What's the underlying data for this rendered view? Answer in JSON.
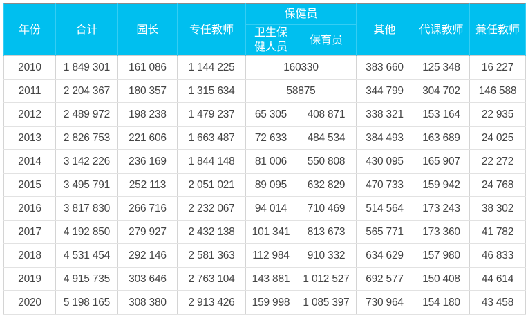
{
  "table": {
    "headers": {
      "year": "年份",
      "total": "合计",
      "principal": "园长",
      "fulltime_teacher": "专任教师",
      "health_staff": "保健员",
      "health_staff_sub": [
        "卫生保健人员",
        "保育员"
      ],
      "other": "其他",
      "substitute_teacher": "代课教师",
      "parttime_teacher": "兼任教师"
    },
    "header_color": "#00bfef",
    "rows": [
      [
        "2010",
        "1 849 301",
        "161 086",
        "1 144 225",
        "160330",
        null,
        "383 660",
        "125 348",
        "16 227"
      ],
      [
        "2011",
        "2 204 367",
        "180 357",
        "1 315 634",
        "58875",
        null,
        "344 799",
        "304 702",
        "146 588"
      ],
      [
        "2012",
        "2 489 972",
        "198 238",
        "1 479 237",
        "65 305",
        "408 871",
        "338 321",
        "153 164",
        "22 935"
      ],
      [
        "2013",
        "2 826 753",
        "221 606",
        "1 663 487",
        "72 633",
        "484 534",
        "384 493",
        "163 689",
        "24 025"
      ],
      [
        "2014",
        "3 142 226",
        "236 169",
        "1 844 148",
        "81 006",
        "550 808",
        "430 095",
        "165 907",
        "22 272"
      ],
      [
        "2015",
        "3 495 791",
        "252 113",
        "2 051 021",
        "89 095",
        "632 829",
        "470 733",
        "159 942",
        "24 768"
      ],
      [
        "2016",
        "3 817 830",
        "266 716",
        "2 232 067",
        "94 014",
        "710 469",
        "514 564",
        "173 243",
        "38 302"
      ],
      [
        "2017",
        "4 192 850",
        "279 927",
        "2 432 138",
        "101 341",
        "813 673",
        "565 771",
        "173 360",
        "41 782"
      ],
      [
        "2018",
        "4 531 454",
        "292 146",
        "2 581 363",
        "112 984",
        "910 332",
        "634 629",
        "157 980",
        "46 833"
      ],
      [
        "2019",
        "4 915 735",
        "303 646",
        "2 763 104",
        "143 881",
        "1 012 527",
        "692 577",
        "150 408",
        "44 614"
      ],
      [
        "2020",
        "5 198 165",
        "308 380",
        "2 913 426",
        "159 998",
        "1 085 397",
        "730 964",
        "154 180",
        "43 458"
      ]
    ]
  }
}
